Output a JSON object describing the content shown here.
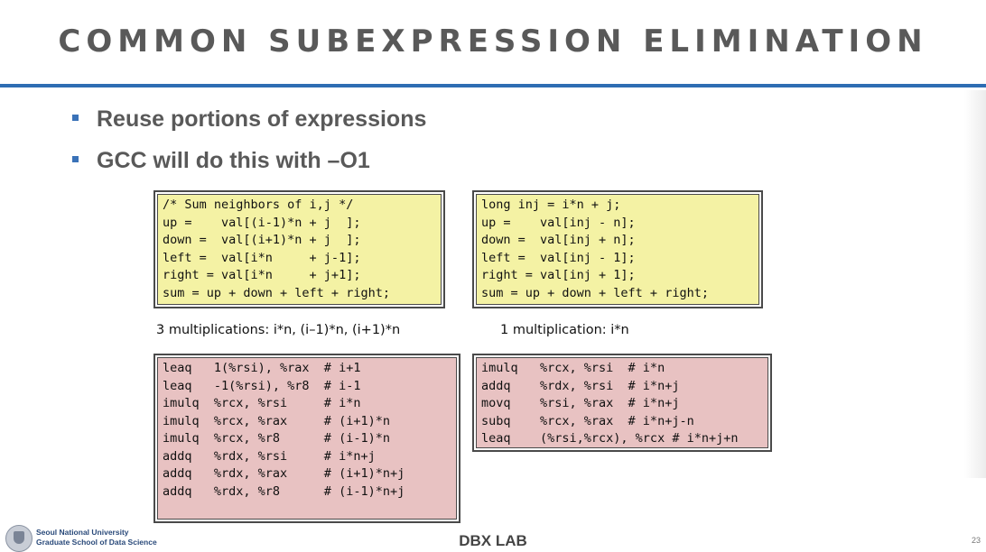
{
  "slide": {
    "title": "COMMON SUBEXPRESSION ELIMINATION",
    "bullets": [
      "Reuse portions of expressions",
      "GCC will do this with –O1"
    ],
    "page_number": "23"
  },
  "code": {
    "c_before": "/* Sum neighbors of i,j */\nup =    val[(i-1)*n + j  ];\ndown =  val[(i+1)*n + j  ];\nleft =  val[i*n     + j-1];\nright = val[i*n     + j+1];\nsum = up + down + left + right;",
    "c_after": "long inj = i*n + j;\nup =    val[inj - n];\ndown =  val[inj + n];\nleft =  val[inj - 1];\nright = val[inj + 1];\nsum = up + down + left + right;",
    "asm_before": "leaq   1(%rsi), %rax  # i+1\nleaq   -1(%rsi), %r8  # i-1\nimulq  %rcx, %rsi     # i*n\nimulq  %rcx, %rax     # (i+1)*n\nimulq  %rcx, %r8      # (i-1)*n\naddq   %rdx, %rsi     # i*n+j\naddq   %rdx, %rax     # (i+1)*n+j\naddq   %rdx, %r8      # (i-1)*n+j",
    "asm_after": "imulq   %rcx, %rsi  # i*n\naddq    %rdx, %rsi  # i*n+j\nmovq    %rsi, %rax  # i*n+j\nsubq    %rcx, %rax  # i*n+j-n\nleaq    (%rsi,%rcx), %rcx # i*n+j+n"
  },
  "captions": {
    "left": "3 multiplications: i*n, (i–1)*n, (i+1)*n",
    "right": "1 multiplication: i*n"
  },
  "footer": {
    "university": "Seoul National University",
    "school": "Graduate School of Data Science",
    "lab": "DBX LAB"
  },
  "colors": {
    "accent_rule": "#2e6db3",
    "code_yellow": "#f4f2a4",
    "code_pink": "#e8c2c2"
  },
  "icons": {
    "footer_logo": "university-seal-icon"
  }
}
